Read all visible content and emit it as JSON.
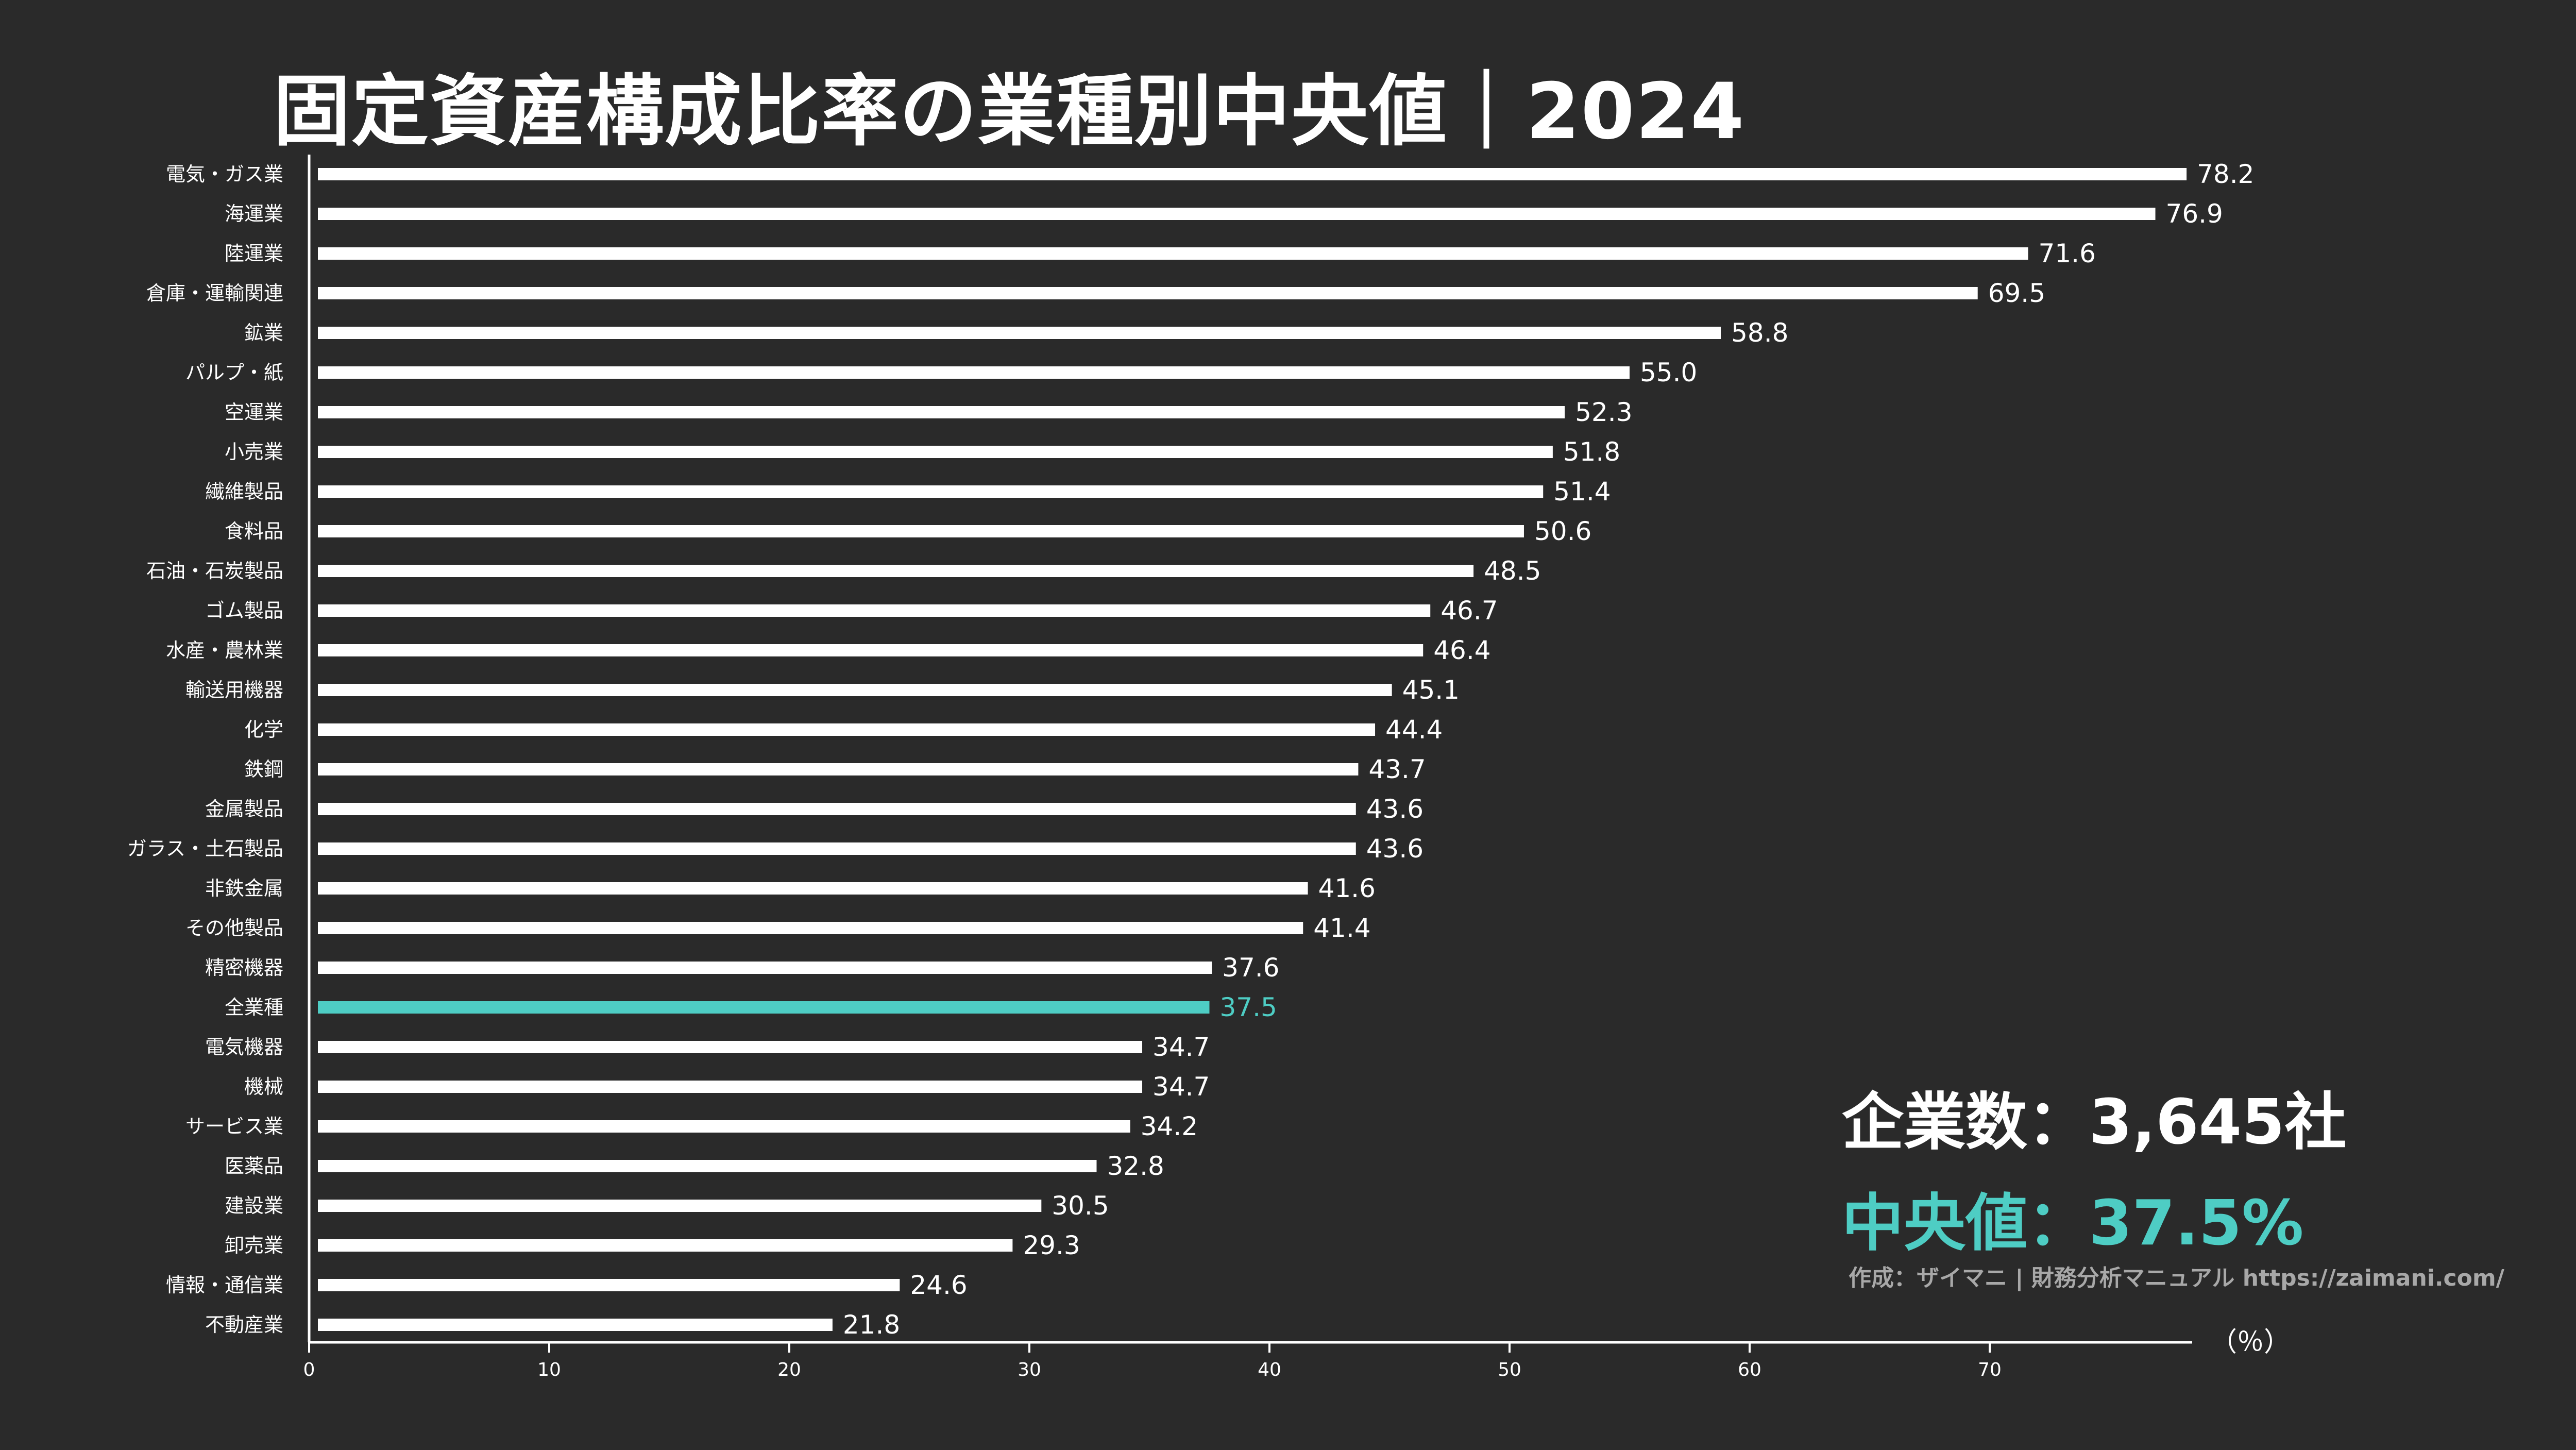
{
  "title": "固定資産構成比率の業種別中央値｜2024",
  "stats": {
    "company_count": "企業数：3,645社",
    "median": "中央値：37.5%"
  },
  "credit": "作成：ザイマニ | 財務分析マニュアル https://zaimani.com/",
  "colors": {
    "background": "#2a2a2a",
    "bar": "#ffffff",
    "highlight": "#4ecdc4",
    "text": "#ffffff",
    "credit": "#a8a8a8"
  },
  "chart_data": {
    "type": "bar",
    "orientation": "horizontal",
    "title": "固定資産構成比率の業種別中央値｜2024",
    "unit_label": "（％）",
    "xlim": [
      0,
      78.2
    ],
    "xticks": [
      0,
      10,
      20,
      30,
      40,
      50,
      60,
      70
    ],
    "highlight_category": "全業種",
    "categories": [
      "電気・ガス業",
      "海運業",
      "陸運業",
      "倉庫・運輸関連",
      "鉱業",
      "パルプ・紙",
      "空運業",
      "小売業",
      "繊維製品",
      "食料品",
      "石油・石炭製品",
      "ゴム製品",
      "水産・農林業",
      "輸送用機器",
      "化学",
      "鉄鋼",
      "金属製品",
      "ガラス・土石製品",
      "非鉄金属",
      "その他製品",
      "精密機器",
      "全業種",
      "電気機器",
      "機械",
      "サービス業",
      "医薬品",
      "建設業",
      "卸売業",
      "情報・通信業",
      "不動産業"
    ],
    "values": [
      78.2,
      76.9,
      71.6,
      69.5,
      58.8,
      55.0,
      52.3,
      51.8,
      51.4,
      50.6,
      48.5,
      46.7,
      46.4,
      45.1,
      44.4,
      43.7,
      43.6,
      43.6,
      41.6,
      41.4,
      37.6,
      37.5,
      34.7,
      34.7,
      34.2,
      32.8,
      30.5,
      29.3,
      24.6,
      21.8
    ],
    "value_labels": [
      "78.2",
      "76.9",
      "71.6",
      "69.5",
      "58.8",
      "55.0",
      "52.3",
      "51.8",
      "51.4",
      "50.6",
      "48.5",
      "46.7",
      "46.4",
      "45.1",
      "44.4",
      "43.7",
      "43.6",
      "43.6",
      "41.6",
      "41.4",
      "37.6",
      "37.5",
      "34.7",
      "34.7",
      "34.2",
      "32.8",
      "30.5",
      "29.3",
      "24.6",
      "21.8"
    ]
  }
}
